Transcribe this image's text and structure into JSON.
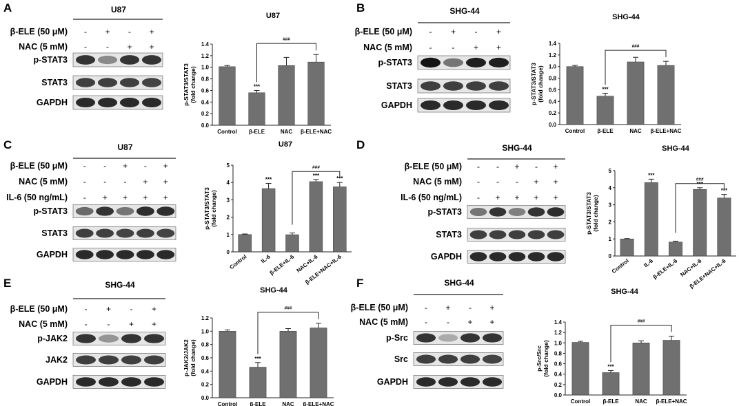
{
  "panels": [
    {
      "letter": "A",
      "blot": {
        "cell_line": "U87",
        "conditions": [
          {
            "label": "β-ELE (50 μM)",
            "signs": [
              "-",
              "+",
              "-",
              "+"
            ]
          },
          {
            "label": "NAC (5 mM)",
            "signs": [
              "-",
              "-",
              "+",
              "+"
            ]
          }
        ],
        "bands": [
          {
            "label": "p-STAT3",
            "intensity": [
              0.85,
              0.45,
              0.85,
              0.85
            ]
          },
          {
            "label": "STAT3",
            "intensity": [
              0.8,
              0.8,
              0.8,
              0.78
            ]
          },
          {
            "label": "GAPDH",
            "intensity": [
              0.9,
              0.9,
              0.9,
              0.9
            ]
          }
        ]
      },
      "chart_data": {
        "type": "bar",
        "title": "U87",
        "categories": [
          "Control",
          "β-ELE",
          "NAC",
          "β-ELE+NAC"
        ],
        "values": [
          1.01,
          0.56,
          1.03,
          1.09
        ],
        "errors": [
          0.02,
          0.04,
          0.14,
          0.13
        ],
        "ylabel": "p-STAT3/STAT3\n(fold change)",
        "ylim": [
          0,
          1.4
        ],
        "yticks": [
          "0.0",
          "0.2",
          "0.4",
          "0.6",
          "0.8",
          "1.0",
          "1.2",
          "1.4"
        ],
        "annotations": [
          {
            "bar": 1,
            "text": "***"
          }
        ],
        "bracket": {
          "from": 1,
          "to": 3,
          "text": "###"
        },
        "rotate_labels": false
      }
    },
    {
      "letter": "B",
      "blot": {
        "cell_line": "SHG-44",
        "conditions": [
          {
            "label": "β-ELE (50 μM)",
            "signs": [
              "-",
              "+",
              "-",
              "+"
            ]
          },
          {
            "label": "NAC (5 mM)",
            "signs": [
              "-",
              "-",
              "+",
              "+"
            ]
          }
        ],
        "bands": [
          {
            "label": "p-STAT3",
            "intensity": [
              1.0,
              0.55,
              0.95,
              0.95
            ]
          },
          {
            "label": "STAT3",
            "intensity": [
              0.8,
              0.8,
              0.8,
              0.8
            ]
          },
          {
            "label": "GAPDH",
            "intensity": [
              0.9,
              0.9,
              0.9,
              0.9
            ]
          }
        ]
      },
      "chart_data": {
        "type": "bar",
        "title": "SHG-44",
        "categories": [
          "Control",
          "β-ELE",
          "NAC",
          "β-ELE+NAC"
        ],
        "values": [
          1.0,
          0.49,
          1.08,
          1.02
        ],
        "errors": [
          0.02,
          0.05,
          0.08,
          0.07
        ],
        "ylabel": "p-STAT3/STAT3\n(fold change)",
        "ylim": [
          0,
          1.4
        ],
        "yticks": [
          "0.0",
          "0.2",
          "0.4",
          "0.6",
          "0.8",
          "1.0",
          "1.2",
          "1.4"
        ],
        "annotations": [
          {
            "bar": 1,
            "text": "***"
          }
        ],
        "bracket": {
          "from": 1,
          "to": 3,
          "text": "###"
        },
        "rotate_labels": false
      }
    },
    {
      "letter": "C",
      "blot": {
        "cell_line": "U87",
        "conditions": [
          {
            "label": "β-ELE (50 μM)",
            "signs": [
              "-",
              "-",
              "+",
              "-",
              "+"
            ]
          },
          {
            "label": "NAC (5 mM)",
            "signs": [
              "-",
              "-",
              "-",
              "+",
              "+"
            ]
          },
          {
            "label": "IL-6 (50 ng/mL)",
            "signs": [
              "-",
              "+",
              "+",
              "+",
              "+"
            ]
          }
        ],
        "bands": [
          {
            "label": "p-STAT3",
            "intensity": [
              0.6,
              0.85,
              0.55,
              0.88,
              0.88
            ]
          },
          {
            "label": "STAT3",
            "intensity": [
              0.8,
              0.8,
              0.78,
              0.8,
              0.78
            ]
          },
          {
            "label": "GAPDH",
            "intensity": [
              0.9,
              0.9,
              0.9,
              0.9,
              0.9
            ]
          }
        ]
      },
      "chart_data": {
        "type": "bar",
        "title": "U87",
        "categories": [
          "Control",
          "IL-6",
          "β-ELE+IL-6",
          "NAC+IL-6",
          "β-ELE+NAC+IL-6"
        ],
        "values": [
          1.0,
          3.65,
          0.99,
          4.05,
          3.75
        ],
        "errors": [
          0.03,
          0.3,
          0.1,
          0.12,
          0.25
        ],
        "ylabel": "p-STAT3/STAT3\n(fold change)",
        "ylim": [
          0,
          5
        ],
        "yticks": [
          "0",
          "1",
          "2",
          "3",
          "4",
          "5"
        ],
        "annotations": [
          {
            "bar": 1,
            "text": "***"
          },
          {
            "bar": 3,
            "text": "***"
          },
          {
            "bar": 4,
            "text": "***"
          }
        ],
        "bracket": {
          "from": 2,
          "to": 4,
          "text": "###"
        },
        "rotate_labels": true
      }
    },
    {
      "letter": "D",
      "blot": {
        "cell_line": "SHG-44",
        "conditions": [
          {
            "label": "β-ELE (50 μM)",
            "signs": [
              "-",
              "-",
              "+",
              "-",
              "+"
            ]
          },
          {
            "label": "NAC (5 mM)",
            "signs": [
              "-",
              "-",
              "-",
              "+",
              "+"
            ]
          },
          {
            "label": "IL-6 (50 ng/mL)",
            "signs": [
              "-",
              "+",
              "+",
              "+",
              "+"
            ]
          }
        ],
        "bands": [
          {
            "label": "p-STAT3",
            "intensity": [
              0.55,
              0.85,
              0.5,
              0.85,
              0.88
            ]
          },
          {
            "label": "STAT3",
            "intensity": [
              0.8,
              0.8,
              0.8,
              0.8,
              0.8
            ]
          },
          {
            "label": "GAPDH",
            "intensity": [
              0.9,
              0.9,
              0.9,
              0.9,
              0.9
            ]
          }
        ]
      },
      "chart_data": {
        "type": "bar",
        "title": "SHG-44",
        "categories": [
          "Control",
          "IL-6",
          "β-ELE+IL-6",
          "NAC+IL-6",
          "β-ELE+NAC+IL-6"
        ],
        "values": [
          1.0,
          4.3,
          0.82,
          3.9,
          3.4
        ],
        "errors": [
          0.02,
          0.2,
          0.05,
          0.1,
          0.2
        ],
        "ylabel": "p-STAT3/STAT3\n(fold change)",
        "ylim": [
          0,
          5
        ],
        "yticks": [
          "0",
          "1",
          "2",
          "3",
          "4",
          "5"
        ],
        "annotations": [
          {
            "bar": 1,
            "text": "***"
          },
          {
            "bar": 3,
            "text": "***"
          },
          {
            "bar": 4,
            "text": "***"
          }
        ],
        "bracket": {
          "from": 2,
          "to": 4,
          "text": "###"
        },
        "rotate_labels": true
      }
    },
    {
      "letter": "E",
      "blot": {
        "cell_line": "SHG-44",
        "conditions": [
          {
            "label": "β-ELE (50 μM)",
            "signs": [
              "-",
              "+",
              "-",
              "+"
            ]
          },
          {
            "label": "NAC (5 mM)",
            "signs": [
              "-",
              "-",
              "+",
              "+"
            ]
          }
        ],
        "bands": [
          {
            "label": "p-JAK2",
            "intensity": [
              0.85,
              0.4,
              0.85,
              0.85
            ]
          },
          {
            "label": "JAK2",
            "intensity": [
              0.8,
              0.8,
              0.8,
              0.8
            ]
          },
          {
            "label": "GAPDH",
            "intensity": [
              0.9,
              0.9,
              0.9,
              0.9
            ]
          }
        ]
      },
      "chart_data": {
        "type": "bar",
        "title": "SHG-44",
        "categories": [
          "Control",
          "β-ELE",
          "NAC",
          "β-ELE+NAC"
        ],
        "values": [
          1.0,
          0.46,
          1.0,
          1.05
        ],
        "errors": [
          0.02,
          0.07,
          0.04,
          0.07
        ],
        "ylabel": "p-JAK2/JAK2\n(fold change)",
        "ylim": [
          0,
          1.2
        ],
        "yticks": [
          "0.0",
          "0.2",
          "0.4",
          "0.6",
          "0.8",
          "1.0",
          "1.2"
        ],
        "annotations": [
          {
            "bar": 1,
            "text": "***"
          }
        ],
        "bracket": {
          "from": 1,
          "to": 3,
          "text": "###"
        },
        "rotate_labels": false
      }
    },
    {
      "letter": "F",
      "blot": {
        "cell_line": "SHG-44",
        "conditions": [
          {
            "label": "β-ELE (50 μM)",
            "signs": [
              "-",
              "+",
              "-",
              "+"
            ]
          },
          {
            "label": "NAC (5 mM)",
            "signs": [
              "-",
              "-",
              "+",
              "+"
            ]
          }
        ],
        "bands": [
          {
            "label": "p-Src",
            "intensity": [
              0.85,
              0.3,
              0.85,
              0.85
            ]
          },
          {
            "label": "Src",
            "intensity": [
              0.8,
              0.8,
              0.8,
              0.78
            ]
          },
          {
            "label": "GAPDH",
            "intensity": [
              0.9,
              0.9,
              0.9,
              0.9
            ]
          }
        ]
      },
      "chart_data": {
        "type": "bar",
        "title": "SHG-44",
        "categories": [
          "Control",
          "β-ELE",
          "NAC",
          "β-ELE+NAC"
        ],
        "values": [
          1.01,
          0.43,
          1.0,
          1.05
        ],
        "errors": [
          0.02,
          0.04,
          0.04,
          0.08
        ],
        "ylabel": "p-Src/Src\n(fold change)",
        "ylim": [
          0,
          1.4
        ],
        "yticks": [
          "0.0",
          "0.2",
          "0.4",
          "0.6",
          "0.8",
          "1.0",
          "1.2",
          "1.4"
        ],
        "annotations": [
          {
            "bar": 1,
            "text": "***"
          }
        ],
        "bracket": {
          "from": 1,
          "to": 3,
          "text": "###"
        },
        "rotate_labels": false
      }
    }
  ]
}
